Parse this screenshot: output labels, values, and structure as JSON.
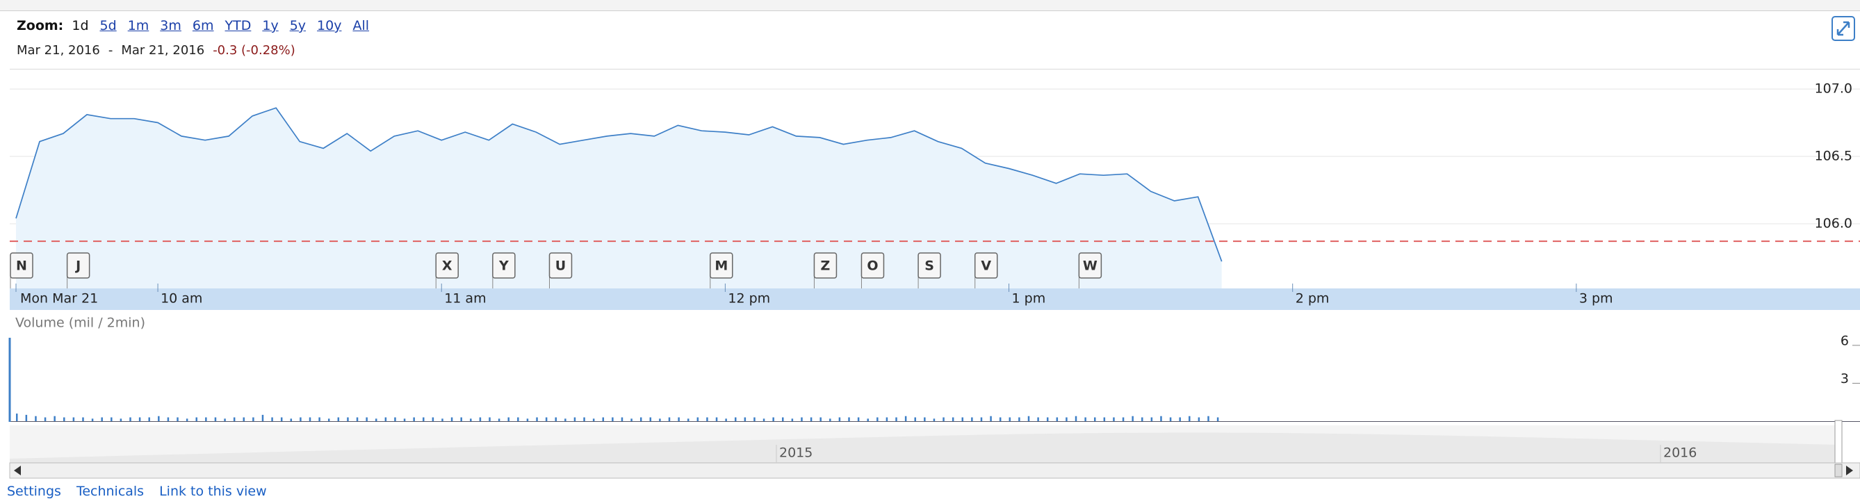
{
  "toolbar": {
    "zoom_label": "Zoom:",
    "zoom_options": [
      "1d",
      "5d",
      "1m",
      "3m",
      "6m",
      "YTD",
      "1y",
      "5y",
      "10y",
      "All"
    ],
    "selected": "1d"
  },
  "range": {
    "start": "Mar 21, 2016",
    "separator": "-",
    "end": "Mar 21, 2016",
    "change": "-0.3 (-0.28%)"
  },
  "chart_data": [
    {
      "type": "line",
      "color": "#3d7fc7",
      "fill": "#eaf4fc",
      "x": [
        570,
        575,
        580,
        585,
        590,
        595,
        600,
        605,
        610,
        615,
        620,
        625,
        630,
        635,
        640,
        645,
        650,
        655,
        660,
        665,
        670,
        675,
        680,
        685,
        690,
        695,
        700,
        705,
        710,
        715,
        720,
        725,
        730,
        735,
        740,
        745,
        750,
        755,
        760,
        765,
        770,
        775,
        780,
        785,
        790,
        795,
        800,
        805,
        810,
        815,
        820,
        825
      ],
      "values": [
        106.04,
        106.61,
        106.67,
        106.81,
        106.78,
        106.78,
        106.75,
        106.65,
        106.62,
        106.65,
        106.8,
        106.86,
        106.61,
        106.56,
        106.67,
        106.54,
        106.65,
        106.69,
        106.62,
        106.68,
        106.62,
        106.74,
        106.68,
        106.59,
        106.62,
        106.65,
        106.67,
        106.65,
        106.73,
        106.69,
        106.68,
        106.66,
        106.72,
        106.65,
        106.64,
        106.59,
        106.62,
        106.64,
        106.69,
        106.61,
        106.56,
        106.45,
        106.41,
        106.36,
        106.3,
        106.37,
        106.36,
        106.37,
        106.24,
        106.17,
        106.2,
        105.72
      ],
      "xlim": [
        570,
        960
      ],
      "xticks": [
        {
          "value": 570,
          "label": "Mon Mar 21"
        },
        {
          "value": 600,
          "label": "10 am"
        },
        {
          "value": 660,
          "label": "11 am"
        },
        {
          "value": 720,
          "label": "12 pm"
        },
        {
          "value": 780,
          "label": "1 pm"
        },
        {
          "value": 840,
          "label": "2 pm"
        },
        {
          "value": 900,
          "label": "3 pm"
        }
      ],
      "ylim": [
        105.52,
        107.15
      ],
      "yticks": [
        {
          "value": 106,
          "label": "106.0"
        },
        {
          "value": 106.5,
          "label": "106.5"
        },
        {
          "value": 107,
          "label": "107.0"
        }
      ],
      "grid": true,
      "ref_line": 105.87,
      "ref_color": "#e06060",
      "events": [
        {
          "label": "N",
          "x": 570
        },
        {
          "label": "J",
          "x": 582
        },
        {
          "label": "X",
          "x": 660
        },
        {
          "label": "Y",
          "x": 672
        },
        {
          "label": "U",
          "x": 684
        },
        {
          "label": "M",
          "x": 718
        },
        {
          "label": "Z",
          "x": 740
        },
        {
          "label": "O",
          "x": 750
        },
        {
          "label": "S",
          "x": 762
        },
        {
          "label": "V",
          "x": 774
        },
        {
          "label": "W",
          "x": 796
        }
      ]
    },
    {
      "type": "bar",
      "title": "Volume (mil / 2min)",
      "color": "#3d7fc7",
      "x": [
        570,
        572,
        574,
        576,
        578,
        580,
        582,
        584,
        586,
        588,
        590,
        592,
        594,
        596,
        598,
        600,
        602,
        604,
        606,
        608,
        610,
        612,
        614,
        616,
        618,
        620,
        622,
        624,
        626,
        628,
        630,
        632,
        634,
        636,
        638,
        640,
        642,
        644,
        646,
        648,
        650,
        652,
        654,
        656,
        658,
        660,
        662,
        664,
        666,
        668,
        670,
        672,
        674,
        676,
        678,
        680,
        682,
        684,
        686,
        688,
        690,
        692,
        694,
        696,
        698,
        700,
        702,
        704,
        706,
        708,
        710,
        712,
        714,
        716,
        718,
        720,
        722,
        724,
        726,
        728,
        730,
        732,
        734,
        736,
        738,
        740,
        742,
        744,
        746,
        748,
        750,
        752,
        754,
        756,
        758,
        760,
        762,
        764,
        766,
        768,
        770,
        772,
        774,
        776,
        778,
        780,
        782,
        784,
        786,
        788,
        790,
        792,
        794,
        796,
        798,
        800,
        802,
        804,
        806,
        808,
        810,
        812,
        814,
        816,
        818,
        820,
        822,
        824
      ],
      "values": [
        0.6,
        0.5,
        0.4,
        0.3,
        0.4,
        0.3,
        0.3,
        0.3,
        0.2,
        0.3,
        0.3,
        0.2,
        0.3,
        0.3,
        0.3,
        0.4,
        0.3,
        0.3,
        0.2,
        0.3,
        0.3,
        0.3,
        0.2,
        0.3,
        0.3,
        0.3,
        0.5,
        0.3,
        0.3,
        0.2,
        0.3,
        0.3,
        0.3,
        0.2,
        0.3,
        0.3,
        0.3,
        0.3,
        0.2,
        0.3,
        0.3,
        0.2,
        0.3,
        0.3,
        0.3,
        0.2,
        0.3,
        0.3,
        0.2,
        0.3,
        0.3,
        0.2,
        0.3,
        0.3,
        0.2,
        0.3,
        0.3,
        0.3,
        0.2,
        0.3,
        0.3,
        0.2,
        0.3,
        0.3,
        0.3,
        0.2,
        0.3,
        0.3,
        0.2,
        0.3,
        0.3,
        0.2,
        0.3,
        0.3,
        0.3,
        0.2,
        0.3,
        0.3,
        0.3,
        0.2,
        0.3,
        0.3,
        0.2,
        0.3,
        0.3,
        0.3,
        0.2,
        0.3,
        0.3,
        0.3,
        0.2,
        0.3,
        0.3,
        0.3,
        0.4,
        0.3,
        0.3,
        0.2,
        0.3,
        0.3,
        0.3,
        0.3,
        0.3,
        0.4,
        0.3,
        0.3,
        0.3,
        0.4,
        0.3,
        0.3,
        0.3,
        0.3,
        0.4,
        0.3,
        0.3,
        0.3,
        0.3,
        0.3,
        0.4,
        0.3,
        0.3,
        0.4,
        0.3,
        0.3,
        0.4,
        0.3,
        0.4,
        0.3
      ],
      "xlim": [
        570,
        960
      ],
      "ylim": [
        0,
        6.6
      ],
      "yticks": [
        3,
        6
      ]
    }
  ],
  "navigator": {
    "labels": [
      "2015",
      "2016"
    ]
  },
  "footer": {
    "links": [
      "Settings",
      "Technicals",
      "Link to this view"
    ]
  }
}
